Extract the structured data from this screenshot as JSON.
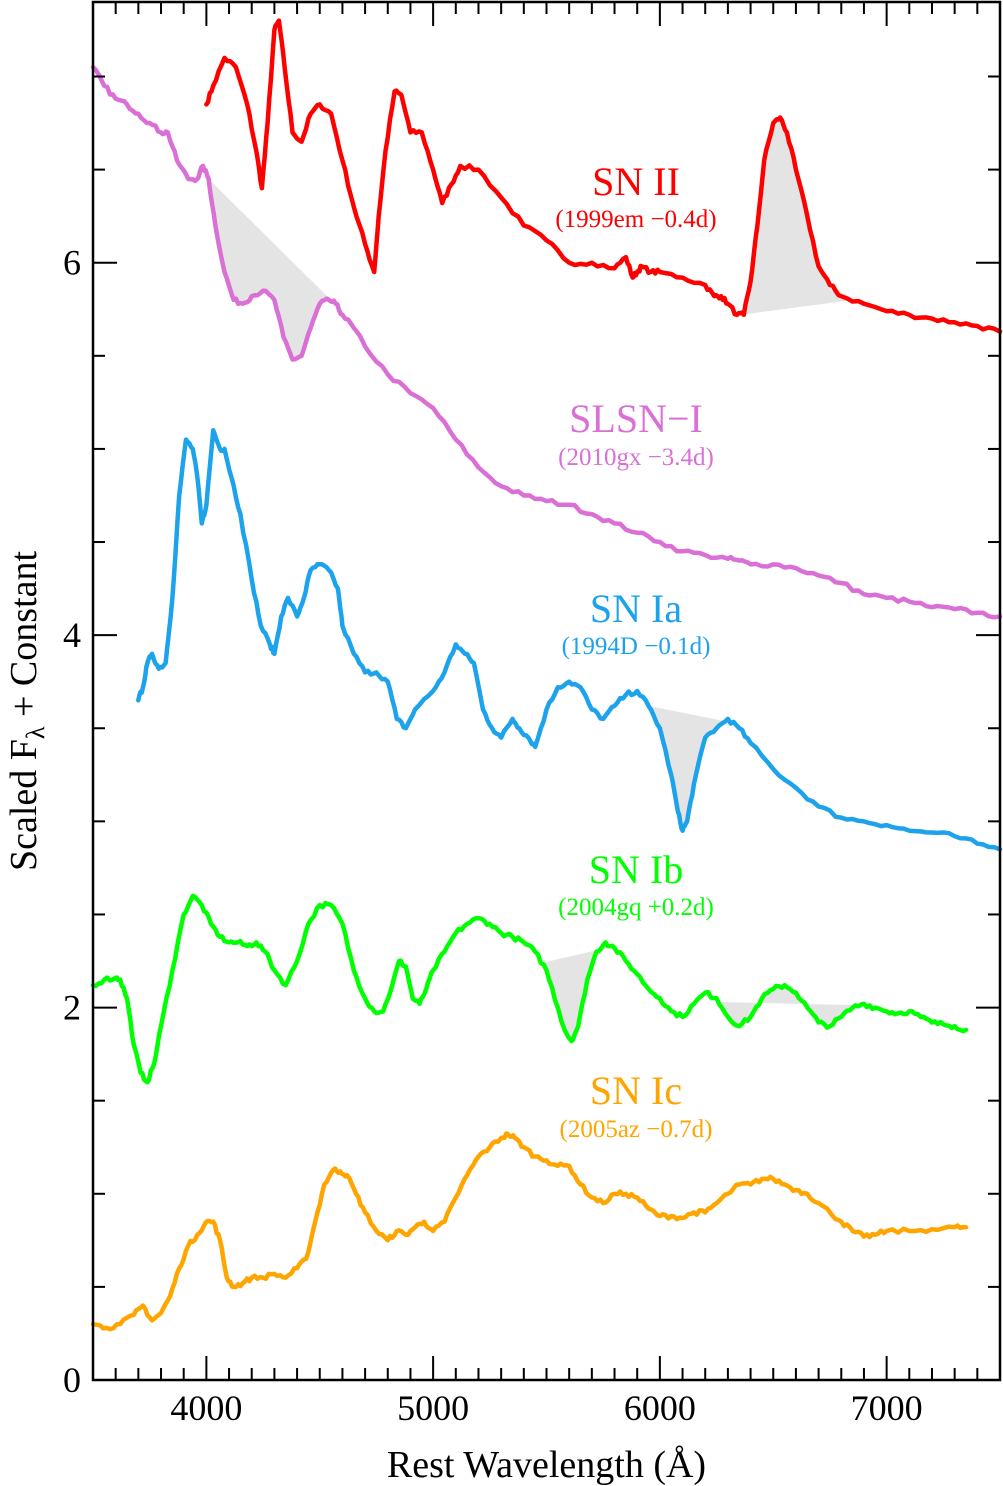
{
  "chart_data": {
    "type": "line",
    "xlabel": "Rest Wavelength (Å)",
    "ylabel_main": "Scaled F",
    "ylabel_sub": "λ",
    "ylabel_suffix": " + Constant",
    "xlim": [
      3500,
      7500
    ],
    "ylim": [
      0,
      7.4
    ],
    "x_ticks": [
      4000,
      5000,
      6000,
      7000
    ],
    "y_ticks": [
      0,
      2,
      4,
      6
    ],
    "grid": false,
    "series": [
      {
        "name": "SN II",
        "subtitle": "(1999em −0.4d)",
        "color": "#ff0000",
        "x": [
          4000,
          4030,
          4080,
          4130,
          4180,
          4220,
          4245,
          4270,
          4300,
          4320,
          4345,
          4380,
          4420,
          4460,
          4500,
          4550,
          4600,
          4650,
          4700,
          4740,
          4760,
          4790,
          4830,
          4860,
          4900,
          4950,
          5000,
          5040,
          5080,
          5120,
          5200,
          5300,
          5400,
          5500,
          5600,
          5700,
          5800,
          5850,
          5880,
          5900,
          5920,
          5960,
          6000,
          6100,
          6200,
          6240,
          6270,
          6300,
          6340,
          6370,
          6400,
          6430,
          6460,
          6500,
          6530,
          6560,
          6600,
          6650,
          6700,
          6750,
          6800,
          6900,
          7000,
          7100,
          7200,
          7300,
          7400,
          7500
        ],
        "y": [
          6.85,
          6.95,
          7.1,
          7.05,
          6.85,
          6.6,
          6.4,
          6.75,
          7.25,
          7.3,
          7.05,
          6.7,
          6.65,
          6.8,
          6.85,
          6.8,
          6.55,
          6.3,
          6.1,
          5.95,
          6.25,
          6.6,
          6.92,
          6.9,
          6.7,
          6.7,
          6.5,
          6.32,
          6.42,
          6.52,
          6.5,
          6.35,
          6.2,
          6.12,
          6.0,
          6.0,
          5.97,
          6.03,
          5.92,
          5.95,
          5.98,
          5.95,
          5.95,
          5.92,
          5.88,
          5.82,
          5.82,
          5.78,
          5.72,
          5.72,
          5.9,
          6.2,
          6.55,
          6.75,
          6.78,
          6.7,
          6.5,
          6.25,
          5.98,
          5.88,
          5.82,
          5.78,
          5.74,
          5.72,
          5.7,
          5.68,
          5.66,
          5.63
        ]
      },
      {
        "name": "SLSN−I",
        "subtitle": "(2010gx −3.4d)",
        "color": "#da70d6",
        "x": [
          3500,
          3550,
          3600,
          3650,
          3700,
          3750,
          3800,
          3830,
          3870,
          3920,
          3960,
          3985,
          4010,
          4040,
          4080,
          4120,
          4160,
          4200,
          4250,
          4300,
          4340,
          4380,
          4420,
          4460,
          4500,
          4540,
          4570,
          4600,
          4650,
          4700,
          4800,
          4900,
          5000,
          5100,
          5200,
          5300,
          5400,
          5500,
          5600,
          5700,
          5800,
          5900,
          6000,
          6100,
          6200,
          6300,
          6350,
          6400,
          6500,
          6600,
          6700,
          6800,
          6900,
          7000,
          7100,
          7200,
          7300,
          7400,
          7500
        ],
        "y": [
          7.05,
          6.95,
          6.88,
          6.85,
          6.8,
          6.75,
          6.7,
          6.7,
          6.55,
          6.45,
          6.45,
          6.52,
          6.45,
          6.2,
          5.95,
          5.8,
          5.78,
          5.82,
          5.85,
          5.8,
          5.6,
          5.48,
          5.5,
          5.65,
          5.78,
          5.8,
          5.78,
          5.72,
          5.65,
          5.55,
          5.4,
          5.3,
          5.22,
          5.05,
          4.9,
          4.8,
          4.75,
          4.72,
          4.7,
          4.65,
          4.6,
          4.55,
          4.5,
          4.45,
          4.43,
          4.41,
          4.4,
          4.38,
          4.38,
          4.36,
          4.32,
          4.28,
          4.22,
          4.2,
          4.18,
          4.15,
          4.14,
          4.12,
          4.1
        ]
      },
      {
        "name": "SN Ia",
        "subtitle": "(1994D −0.1d)",
        "color": "#1ca3ec",
        "x": [
          3700,
          3720,
          3740,
          3760,
          3790,
          3820,
          3850,
          3880,
          3910,
          3940,
          3960,
          3980,
          4000,
          4030,
          4060,
          4080,
          4110,
          4150,
          4200,
          4240,
          4280,
          4300,
          4330,
          4360,
          4400,
          4430,
          4460,
          4500,
          4540,
          4580,
          4600,
          4650,
          4700,
          4750,
          4800,
          4840,
          4880,
          4920,
          5000,
          5050,
          5100,
          5140,
          5180,
          5220,
          5260,
          5300,
          5350,
          5380,
          5420,
          5450,
          5500,
          5550,
          5600,
          5650,
          5700,
          5750,
          5800,
          5850,
          5900,
          5950,
          6000,
          6050,
          6080,
          6100,
          6120,
          6150,
          6200,
          6250,
          6300,
          6350,
          6400,
          6500,
          6600,
          6700,
          6800,
          6900,
          7000,
          7100,
          7200,
          7300,
          7400,
          7500
        ],
        "y": [
          3.65,
          3.72,
          3.85,
          3.9,
          3.82,
          3.85,
          4.2,
          4.75,
          5.05,
          5.0,
          4.85,
          4.6,
          4.7,
          5.1,
          5.0,
          5.0,
          4.85,
          4.65,
          4.3,
          4.05,
          3.95,
          3.9,
          4.1,
          4.2,
          4.1,
          4.2,
          4.35,
          4.38,
          4.35,
          4.25,
          4.05,
          3.9,
          3.8,
          3.8,
          3.75,
          3.55,
          3.5,
          3.6,
          3.7,
          3.8,
          3.95,
          3.9,
          3.85,
          3.6,
          3.5,
          3.45,
          3.55,
          3.5,
          3.45,
          3.4,
          3.6,
          3.72,
          3.75,
          3.72,
          3.6,
          3.55,
          3.62,
          3.68,
          3.7,
          3.62,
          3.5,
          3.25,
          3.05,
          2.95,
          3.0,
          3.2,
          3.45,
          3.5,
          3.55,
          3.5,
          3.42,
          3.28,
          3.18,
          3.08,
          3.02,
          3.0,
          2.98,
          2.95,
          2.94,
          2.92,
          2.88,
          2.85
        ]
      },
      {
        "name": "SN Ib",
        "subtitle": "(2004gq +0.2d)",
        "color": "#00ff00",
        "x": [
          3500,
          3550,
          3600,
          3620,
          3650,
          3680,
          3710,
          3740,
          3770,
          3800,
          3850,
          3900,
          3940,
          3980,
          4020,
          4060,
          4100,
          4140,
          4180,
          4220,
          4260,
          4300,
          4350,
          4400,
          4450,
          4500,
          4550,
          4600,
          4650,
          4700,
          4740,
          4780,
          4820,
          4850,
          4880,
          4910,
          4940,
          4970,
          5000,
          5050,
          5100,
          5150,
          5200,
          5250,
          5300,
          5350,
          5400,
          5450,
          5500,
          5550,
          5580,
          5610,
          5640,
          5680,
          5720,
          5760,
          5800,
          5850,
          5900,
          5950,
          6000,
          6050,
          6100,
          6150,
          6200,
          6250,
          6300,
          6350,
          6400,
          6450,
          6500,
          6550,
          6600,
          6650,
          6700,
          6750,
          6800,
          6850,
          6900,
          6950,
          7000,
          7050,
          7100,
          7150,
          7200,
          7250,
          7300,
          7350
        ],
        "y": [
          2.12,
          2.15,
          2.16,
          2.15,
          2.05,
          1.8,
          1.65,
          1.6,
          1.7,
          1.9,
          2.2,
          2.5,
          2.6,
          2.55,
          2.45,
          2.38,
          2.35,
          2.35,
          2.33,
          2.35,
          2.3,
          2.2,
          2.12,
          2.25,
          2.45,
          2.55,
          2.55,
          2.45,
          2.2,
          2.05,
          1.98,
          1.98,
          2.12,
          2.25,
          2.22,
          2.05,
          2.02,
          2.1,
          2.2,
          2.3,
          2.4,
          2.45,
          2.48,
          2.45,
          2.4,
          2.38,
          2.35,
          2.3,
          2.2,
          2.0,
          1.88,
          1.82,
          1.9,
          2.15,
          2.3,
          2.35,
          2.32,
          2.25,
          2.18,
          2.1,
          2.05,
          1.98,
          1.95,
          2.02,
          2.08,
          2.05,
          1.95,
          1.9,
          1.95,
          2.05,
          2.1,
          2.12,
          2.08,
          2.0,
          1.92,
          1.9,
          1.95,
          2.0,
          2.02,
          2.0,
          1.98,
          1.97,
          1.98,
          1.95,
          1.92,
          1.91,
          1.9,
          1.88
        ]
      },
      {
        "name": "SN Ic",
        "subtitle": "(2005az −0.7d)",
        "color": "#ffa500",
        "x": [
          3500,
          3560,
          3620,
          3680,
          3720,
          3760,
          3800,
          3840,
          3880,
          3920,
          3960,
          4000,
          4030,
          4060,
          4090,
          4120,
          4160,
          4200,
          4250,
          4300,
          4350,
          4400,
          4440,
          4480,
          4520,
          4560,
          4590,
          4620,
          4660,
          4700,
          4750,
          4800,
          4840,
          4880,
          4920,
          4960,
          5000,
          5050,
          5100,
          5150,
          5200,
          5250,
          5300,
          5330,
          5360,
          5400,
          5450,
          5500,
          5550,
          5600,
          5650,
          5700,
          5750,
          5800,
          5850,
          5900,
          5950,
          6000,
          6050,
          6100,
          6150,
          6200,
          6250,
          6300,
          6350,
          6400,
          6450,
          6500,
          6550,
          6600,
          6650,
          6700,
          6750,
          6800,
          6850,
          6900,
          6950,
          7000,
          7100,
          7200,
          7300,
          7350
        ],
        "y": [
          0.3,
          0.28,
          0.3,
          0.35,
          0.4,
          0.32,
          0.36,
          0.45,
          0.6,
          0.72,
          0.78,
          0.85,
          0.85,
          0.75,
          0.55,
          0.5,
          0.52,
          0.55,
          0.55,
          0.57,
          0.55,
          0.6,
          0.65,
          0.85,
          1.05,
          1.13,
          1.12,
          1.1,
          1.0,
          0.9,
          0.8,
          0.75,
          0.8,
          0.78,
          0.82,
          0.85,
          0.8,
          0.85,
          0.98,
          1.1,
          1.2,
          1.25,
          1.3,
          1.32,
          1.3,
          1.25,
          1.2,
          1.18,
          1.15,
          1.15,
          1.05,
          0.98,
          0.95,
          1.0,
          1.0,
          0.98,
          0.92,
          0.88,
          0.88,
          0.87,
          0.9,
          0.9,
          0.95,
          1.0,
          1.05,
          1.05,
          1.08,
          1.08,
          1.05,
          1.02,
          1.0,
          0.95,
          0.9,
          0.85,
          0.8,
          0.77,
          0.78,
          0.8,
          0.8,
          0.81,
          0.82,
          0.82
        ]
      }
    ],
    "shaded_regions": [
      {
        "series": "SN II",
        "from": 6360,
        "to": 6850
      },
      {
        "series": "SLSN−I",
        "from": 4010,
        "to": 4560
      },
      {
        "series": "SN Ia",
        "from": 5950,
        "to": 6320
      },
      {
        "series": "SN Ib",
        "from": 5480,
        "to": 5790
      },
      {
        "series": "SN Ib",
        "from": 6260,
        "to": 6880
      }
    ]
  }
}
